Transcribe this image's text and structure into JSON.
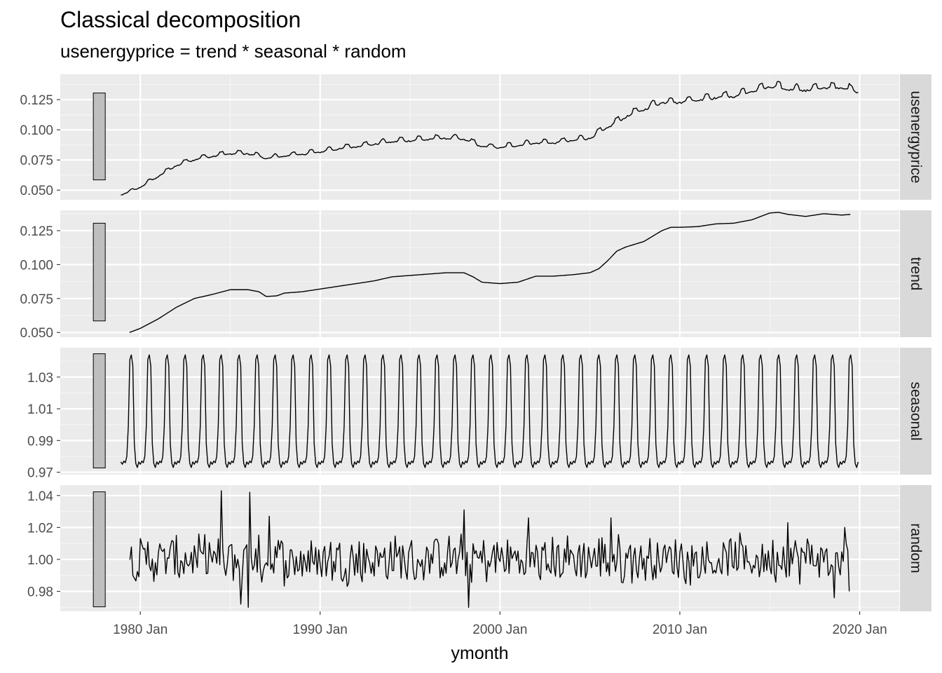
{
  "title": "Classical decomposition",
  "subtitle": "usenergyprice = trend * seasonal * random",
  "chart_data": {
    "type": "line",
    "xlabel": "ymonth",
    "x_ticks": [
      "1980 Jan",
      "1990 Jan",
      "2000 Jan",
      "2010 Jan",
      "2020 Jan"
    ],
    "x_tick_years": [
      1980,
      1990,
      2000,
      2010,
      2020
    ],
    "xlim": [
      1975.55,
      2022.2
    ],
    "series_start": 1978.917,
    "grid": true,
    "panels": [
      {
        "strip": "usenergyprice",
        "ylim": [
          0.042,
          0.146
        ],
        "y_ticks": [
          0.05,
          0.075,
          0.1,
          0.125
        ],
        "y_tick_labels": [
          "0.050",
          "0.075",
          "0.100",
          "0.125"
        ],
        "scale_bar": [
          0.0585,
          0.1305
        ],
        "seasonal_amp": 0.035,
        "trend_points": [
          [
            1978.92,
            0.0465
          ],
          [
            1979.5,
            0.0495
          ],
          [
            1980,
            0.053
          ],
          [
            1981,
            0.062
          ],
          [
            1982,
            0.071
          ],
          [
            1983,
            0.076
          ],
          [
            1984,
            0.079
          ],
          [
            1985,
            0.081
          ],
          [
            1986,
            0.081
          ],
          [
            1987,
            0.077
          ],
          [
            1988,
            0.079
          ],
          [
            1989,
            0.0805
          ],
          [
            1990,
            0.0825
          ],
          [
            1991,
            0.085
          ],
          [
            1992,
            0.087
          ],
          [
            1993,
            0.089
          ],
          [
            1994,
            0.091
          ],
          [
            1995,
            0.092
          ],
          [
            1996,
            0.093
          ],
          [
            1997,
            0.094
          ],
          [
            1998,
            0.093
          ],
          [
            1999,
            0.087
          ],
          [
            2000,
            0.086
          ],
          [
            2001,
            0.088
          ],
          [
            2002,
            0.09
          ],
          [
            2003,
            0.09
          ],
          [
            2004,
            0.092
          ],
          [
            2005,
            0.094
          ],
          [
            2006,
            0.103
          ],
          [
            2007,
            0.112
          ],
          [
            2008,
            0.118
          ],
          [
            2009,
            0.124
          ],
          [
            2010,
            0.124
          ],
          [
            2011,
            0.126
          ],
          [
            2012,
            0.128
          ],
          [
            2013,
            0.129
          ],
          [
            2014,
            0.133
          ],
          [
            2015,
            0.137
          ],
          [
            2016,
            0.135
          ],
          [
            2017,
            0.134
          ],
          [
            2018,
            0.136
          ],
          [
            2019,
            0.136
          ],
          [
            2019.9,
            0.133
          ]
        ]
      },
      {
        "strip": "trend",
        "ylim": [
          0.0465,
          0.14
        ],
        "y_ticks": [
          0.05,
          0.075,
          0.1,
          0.125
        ],
        "y_tick_labels": [
          "0.050",
          "0.075",
          "0.100",
          "0.125"
        ],
        "scale_bar": [
          0.0585,
          0.1305
        ],
        "points": [
          [
            1979.4,
            0.05
          ],
          [
            1980,
            0.053
          ],
          [
            1981,
            0.06
          ],
          [
            1982,
            0.0685
          ],
          [
            1983,
            0.075
          ],
          [
            1984,
            0.078
          ],
          [
            1985,
            0.0815
          ],
          [
            1986,
            0.0815
          ],
          [
            1986.6,
            0.08
          ],
          [
            1987,
            0.0765
          ],
          [
            1987.6,
            0.077
          ],
          [
            1988,
            0.079
          ],
          [
            1989,
            0.08
          ],
          [
            1990,
            0.082
          ],
          [
            1991,
            0.084
          ],
          [
            1992,
            0.086
          ],
          [
            1993,
            0.088
          ],
          [
            1994,
            0.091
          ],
          [
            1995,
            0.092
          ],
          [
            1996,
            0.093
          ],
          [
            1997,
            0.094
          ],
          [
            1998,
            0.094
          ],
          [
            1998.5,
            0.091
          ],
          [
            1999,
            0.087
          ],
          [
            2000,
            0.086
          ],
          [
            2001,
            0.087
          ],
          [
            2002,
            0.0915
          ],
          [
            2003,
            0.0915
          ],
          [
            2004,
            0.0925
          ],
          [
            2005,
            0.094
          ],
          [
            2005.5,
            0.097
          ],
          [
            2006,
            0.103
          ],
          [
            2006.5,
            0.11
          ],
          [
            2007,
            0.113
          ],
          [
            2008,
            0.117
          ],
          [
            2009,
            0.125
          ],
          [
            2009.5,
            0.1275
          ],
          [
            2010,
            0.1275
          ],
          [
            2011,
            0.128
          ],
          [
            2012,
            0.13
          ],
          [
            2013,
            0.1305
          ],
          [
            2014,
            0.133
          ],
          [
            2015,
            0.138
          ],
          [
            2015.5,
            0.1385
          ],
          [
            2016,
            0.137
          ],
          [
            2017,
            0.1355
          ],
          [
            2018,
            0.1375
          ],
          [
            2019,
            0.1365
          ],
          [
            2019.5,
            0.137
          ]
        ]
      },
      {
        "strip": "seasonal",
        "ylim": [
          0.9685,
          1.0485
        ],
        "y_ticks": [
          0.97,
          0.99,
          1.01,
          1.03
        ],
        "y_tick_labels": [
          "0.97",
          "0.99",
          "1.01",
          "1.03"
        ],
        "scale_bar": [
          0.9727,
          1.0447
        ],
        "monthly_factors": [
          0.9765,
          0.975,
          0.977,
          0.976,
          0.98,
          0.999,
          1.041,
          1.044,
          1.037,
          0.988,
          0.9755,
          0.973
        ],
        "range": [
          1978.917,
          2019.917
        ]
      },
      {
        "strip": "random",
        "ylim": [
          0.9675,
          1.0465
        ],
        "y_ticks": [
          0.98,
          1.0,
          1.02,
          1.04
        ],
        "y_tick_labels": [
          "0.98",
          "1.00",
          "1.02",
          "1.04"
        ],
        "scale_bar": [
          0.9703,
          1.0423
        ],
        "range": [
          1979.42,
          2019.42
        ],
        "spikes": [
          [
            1984.5,
            1.043
          ],
          [
            1984.75,
            0.99
          ],
          [
            1985.6,
            0.972
          ],
          [
            1986,
            0.97
          ],
          [
            1986.1,
            1.042
          ],
          [
            1986.5,
            0.992
          ],
          [
            1987.2,
            1.027
          ],
          [
            1998,
            1.031
          ],
          [
            1998.25,
            0.97
          ],
          [
            2001.6,
            1.026
          ],
          [
            2006.2,
            1.026
          ],
          [
            2016,
            1.023
          ],
          [
            2018.6,
            0.976
          ],
          [
            2019.2,
            1.02
          ],
          [
            2019.4,
            0.98
          ]
        ]
      }
    ]
  }
}
